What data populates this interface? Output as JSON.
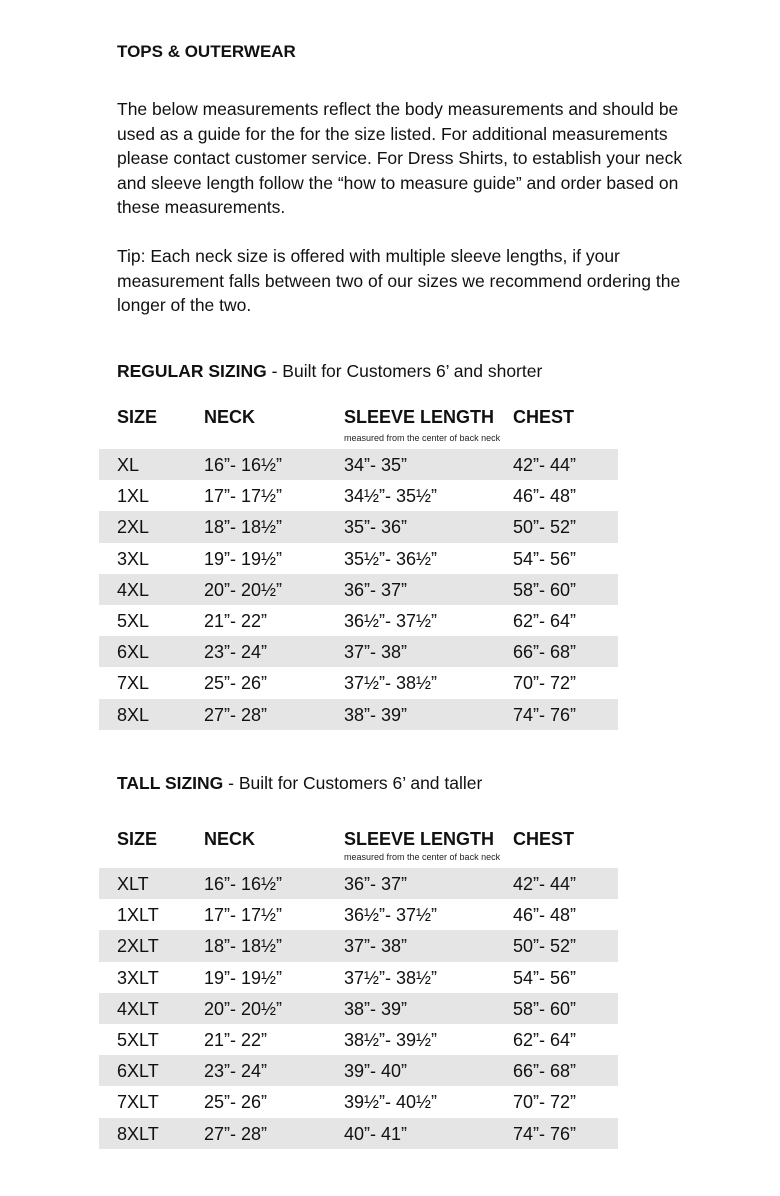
{
  "title": "TOPS & OUTERWEAR",
  "intro": "The below measurements reflect the body measurements and should be used as a guide for the for the size listed. For additional measurements please contact customer service. For Dress Shirts, to establish your neck and sleeve length follow the “how to measure guide” and order based on these measurements.",
  "tip": "Tip: Each neck size is offered with multiple sleeve lengths, if your measurement falls between two of our sizes we recommend ordering the longer of the two.",
  "headers": [
    "SIZE",
    "NECK",
    "SLEEVE LENGTH",
    "CHEST"
  ],
  "sleeve_note": "measured from the center of back neck",
  "regular": {
    "title": "REGULAR SIZING",
    "subtitle": " - Built for Customers 6’ and shorter",
    "rows": [
      [
        "XL",
        "16”- 16½”",
        "34”- 35”",
        "42”- 44”"
      ],
      [
        "1XL",
        "17”- 17½”",
        "34½”- 35½”",
        "46”- 48”"
      ],
      [
        "2XL",
        "18”- 18½”",
        "35”- 36”",
        "50”- 52”"
      ],
      [
        "3XL",
        "19”- 19½”",
        "35½”- 36½”",
        "54”- 56”"
      ],
      [
        "4XL",
        "20”- 20½”",
        "36”- 37”",
        "58”- 60”"
      ],
      [
        "5XL",
        "21”- 22”",
        "36½”- 37½”",
        "62”- 64”"
      ],
      [
        "6XL",
        "23”- 24”",
        "37”- 38”",
        "66”- 68”"
      ],
      [
        "7XL",
        "25”- 26”",
        "37½”- 38½”",
        "70”- 72”"
      ],
      [
        "8XL",
        "27”- 28”",
        "38”- 39”",
        "74”- 76”"
      ]
    ]
  },
  "tall": {
    "title": "TALL SIZING",
    "subtitle": " - Built for Customers 6’ and taller",
    "rows": [
      [
        "XLT",
        "16”- 16½”",
        "36”- 37”",
        "42”- 44”"
      ],
      [
        "1XLT",
        "17”- 17½”",
        "36½”- 37½”",
        "46”- 48”"
      ],
      [
        "2XLT",
        "18”- 18½”",
        "37”- 38”",
        "50”- 52”"
      ],
      [
        "3XLT",
        "19”- 19½”",
        "37½”- 38½”",
        "54”- 56”"
      ],
      [
        "4XLT",
        "20”- 20½”",
        "38”- 39”",
        "58”- 60”"
      ],
      [
        "5XLT",
        "21”- 22”",
        "38½”- 39½”",
        "62”- 64”"
      ],
      [
        "6XLT",
        "23”- 24”",
        "39”- 40”",
        "66”- 68”"
      ],
      [
        "7XLT",
        "25”- 26”",
        "39½”- 40½”",
        "70”- 72”"
      ],
      [
        "8XLT",
        "27”- 28”",
        "40”- 41”",
        "74”- 76”"
      ]
    ]
  }
}
